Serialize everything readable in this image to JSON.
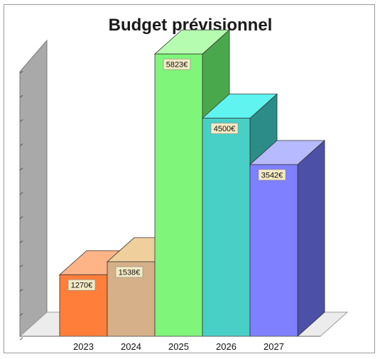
{
  "chart_data": {
    "type": "bar",
    "title": "Budget prévisionnel",
    "xlabel": "",
    "ylabel": "",
    "categories": [
      "2023",
      "2024",
      "2025",
      "2026",
      "2027"
    ],
    "values": [
      1270,
      1538,
      5823,
      4500,
      3542
    ],
    "data_labels": [
      "1270€",
      "1538€",
      "5823€",
      "4500€",
      "3542€"
    ],
    "unit": "€",
    "ylim": [
      0,
      6000
    ],
    "grid": false,
    "legend": "none",
    "style": "3d",
    "colors": {
      "front": [
        "#ff7f3a",
        "#d5b088",
        "#7ff57a",
        "#48cfc6",
        "#7e80ff"
      ],
      "top": [
        "#ffb488",
        "#efcf9c",
        "#b5fbb0",
        "#5ff4ef",
        "#b8baff"
      ],
      "side": [
        "#c6612c",
        "#a88a68",
        "#4aa84c",
        "#2b8c88",
        "#4c50a6"
      ],
      "wall": "#a9a9a9",
      "floor": "#ececec",
      "label_bg": "#f3e9c3"
    }
  }
}
